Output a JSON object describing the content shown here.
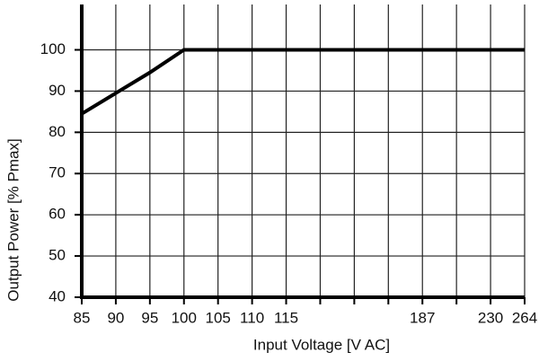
{
  "chart_data": {
    "type": "line",
    "x_label": "Input Voltage [V AC]",
    "y_label": "Output Power [% Pmax]",
    "categories": [
      "85",
      "90",
      "95",
      "100",
      "105",
      "110",
      "115",
      null,
      null,
      null,
      "187",
      null,
      "230",
      "264"
    ],
    "series": [
      {
        "name": "Output power",
        "color": "#000000",
        "values": [
          84.5,
          89.5,
          94.5,
          100,
          100,
          100,
          100,
          100,
          100,
          100,
          100,
          100,
          100,
          100
        ]
      }
    ],
    "ylim": [
      40,
      111
    ],
    "yticks": [
      40,
      50,
      60,
      70,
      80,
      90,
      100
    ],
    "grid": true
  }
}
